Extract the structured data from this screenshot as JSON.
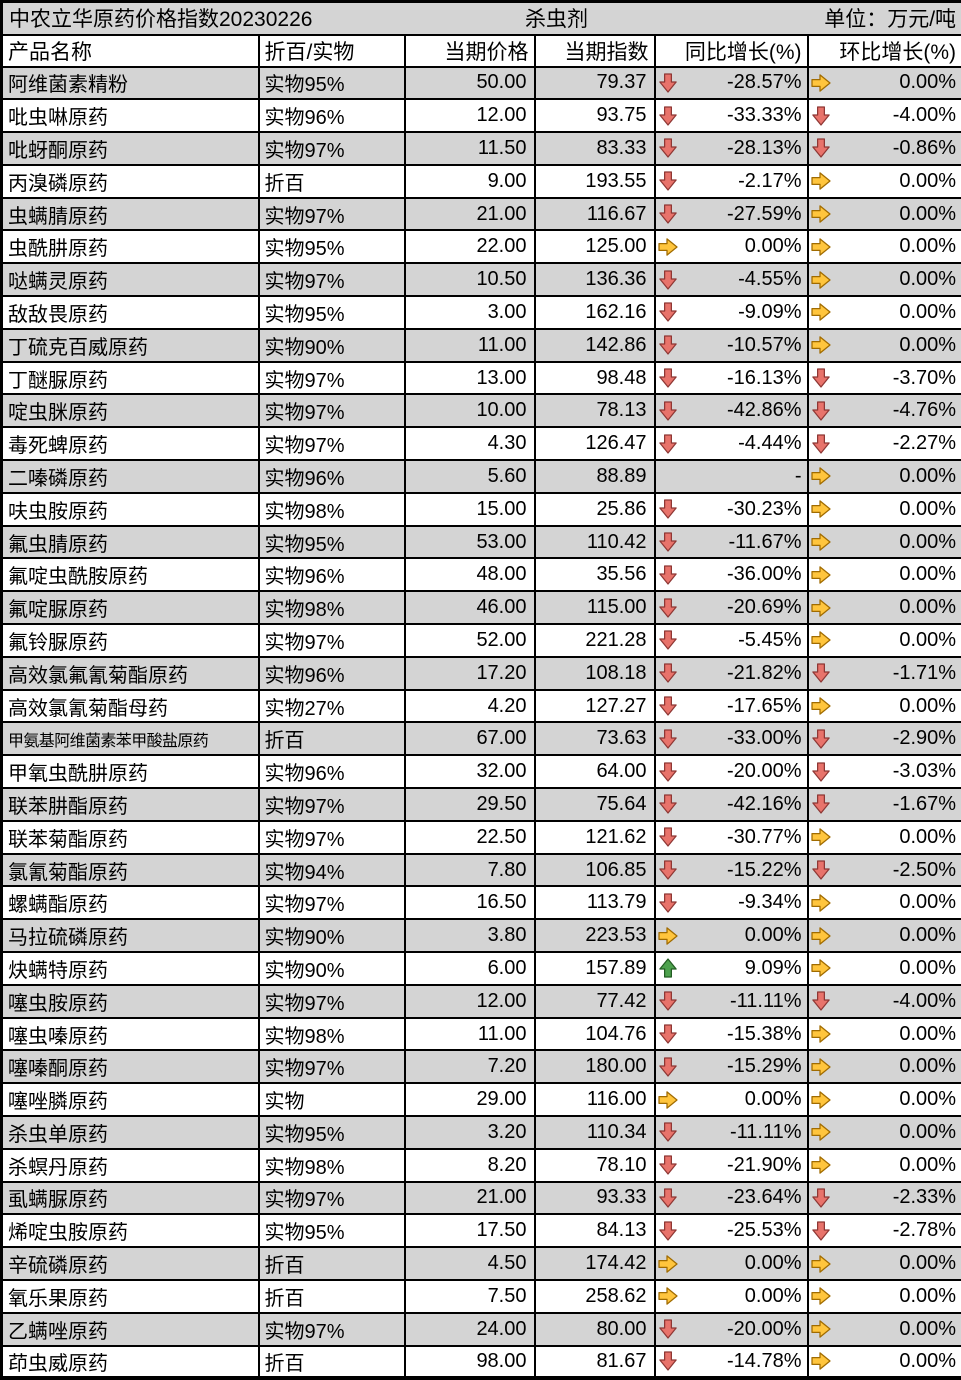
{
  "title": {
    "left": "中农立华原药价格指数20230226",
    "center": "杀虫剂",
    "right": "单位：万元/吨"
  },
  "colors": {
    "row_stripe": "#d4d4d4",
    "grid_border": "#000000",
    "arrow_down_fill": "#e8736b",
    "arrow_down_stroke": "#8e3734",
    "arrow_right_fill": "#ffc53d",
    "arrow_right_stroke": "#a06b00",
    "arrow_up_fill": "#4ea24e",
    "arrow_up_stroke": "#225c22"
  },
  "chart_data": {
    "type": "table",
    "title": "中农立华原药价格指数20230226",
    "category": "杀虫剂",
    "unit_label": "单位：万元/吨",
    "columns": [
      "产品名称",
      "折百/实物",
      "当期价格",
      "当期指数",
      "同比增长(%)",
      "环比增长(%)"
    ],
    "rows": [
      {
        "name": "阿维菌素精粉",
        "spec": "实物95%",
        "price": "50.00",
        "index": "79.37",
        "yoy_dir": "down",
        "yoy": "-28.57%",
        "mom_dir": "right",
        "mom": "0.00%"
      },
      {
        "name": "吡虫啉原药",
        "spec": "实物96%",
        "price": "12.00",
        "index": "93.75",
        "yoy_dir": "down",
        "yoy": "-33.33%",
        "mom_dir": "down",
        "mom": "-4.00%"
      },
      {
        "name": "吡蚜酮原药",
        "spec": "实物97%",
        "price": "11.50",
        "index": "83.33",
        "yoy_dir": "down",
        "yoy": "-28.13%",
        "mom_dir": "down",
        "mom": "-0.86%"
      },
      {
        "name": "丙溴磷原药",
        "spec": "折百",
        "price": "9.00",
        "index": "193.55",
        "yoy_dir": "down",
        "yoy": "-2.17%",
        "mom_dir": "right",
        "mom": "0.00%"
      },
      {
        "name": "虫螨腈原药",
        "spec": "实物97%",
        "price": "21.00",
        "index": "116.67",
        "yoy_dir": "down",
        "yoy": "-27.59%",
        "mom_dir": "right",
        "mom": "0.00%"
      },
      {
        "name": "虫酰肼原药",
        "spec": "实物95%",
        "price": "22.00",
        "index": "125.00",
        "yoy_dir": "right",
        "yoy": "0.00%",
        "mom_dir": "right",
        "mom": "0.00%"
      },
      {
        "name": "哒螨灵原药",
        "spec": "实物97%",
        "price": "10.50",
        "index": "136.36",
        "yoy_dir": "down",
        "yoy": "-4.55%",
        "mom_dir": "right",
        "mom": "0.00%"
      },
      {
        "name": "敌敌畏原药",
        "spec": "实物95%",
        "price": "3.00",
        "index": "162.16",
        "yoy_dir": "down",
        "yoy": "-9.09%",
        "mom_dir": "right",
        "mom": "0.00%"
      },
      {
        "name": "丁硫克百威原药",
        "spec": "实物90%",
        "price": "11.00",
        "index": "142.86",
        "yoy_dir": "down",
        "yoy": "-10.57%",
        "mom_dir": "right",
        "mom": "0.00%"
      },
      {
        "name": "丁醚脲原药",
        "spec": "实物97%",
        "price": "13.00",
        "index": "98.48",
        "yoy_dir": "down",
        "yoy": "-16.13%",
        "mom_dir": "down",
        "mom": "-3.70%"
      },
      {
        "name": "啶虫脒原药",
        "spec": "实物97%",
        "price": "10.00",
        "index": "78.13",
        "yoy_dir": "down",
        "yoy": "-42.86%",
        "mom_dir": "down",
        "mom": "-4.76%"
      },
      {
        "name": "毒死蜱原药",
        "spec": "实物97%",
        "price": "4.30",
        "index": "126.47",
        "yoy_dir": "down",
        "yoy": "-4.44%",
        "mom_dir": "down",
        "mom": "-2.27%"
      },
      {
        "name": "二嗪磷原药",
        "spec": "实物96%",
        "price": "5.60",
        "index": "88.89",
        "yoy_dir": "none",
        "yoy": "-",
        "mom_dir": "right",
        "mom": "0.00%"
      },
      {
        "name": "呋虫胺原药",
        "spec": "实物98%",
        "price": "15.00",
        "index": "25.86",
        "yoy_dir": "down",
        "yoy": "-30.23%",
        "mom_dir": "right",
        "mom": "0.00%"
      },
      {
        "name": "氟虫腈原药",
        "spec": "实物95%",
        "price": "53.00",
        "index": "110.42",
        "yoy_dir": "down",
        "yoy": "-11.67%",
        "mom_dir": "right",
        "mom": "0.00%"
      },
      {
        "name": "氟啶虫酰胺原药",
        "spec": "实物96%",
        "price": "48.00",
        "index": "35.56",
        "yoy_dir": "down",
        "yoy": "-36.00%",
        "mom_dir": "right",
        "mom": "0.00%"
      },
      {
        "name": "氟啶脲原药",
        "spec": "实物98%",
        "price": "46.00",
        "index": "115.00",
        "yoy_dir": "down",
        "yoy": "-20.69%",
        "mom_dir": "right",
        "mom": "0.00%"
      },
      {
        "name": "氟铃脲原药",
        "spec": "实物97%",
        "price": "52.00",
        "index": "221.28",
        "yoy_dir": "down",
        "yoy": "-5.45%",
        "mom_dir": "right",
        "mom": "0.00%"
      },
      {
        "name": "高效氯氟氰菊酯原药",
        "spec": "实物96%",
        "price": "17.20",
        "index": "108.18",
        "yoy_dir": "down",
        "yoy": "-21.82%",
        "mom_dir": "down",
        "mom": "-1.71%"
      },
      {
        "name": "高效氯氰菊酯母药",
        "spec": "实物27%",
        "price": "4.20",
        "index": "127.27",
        "yoy_dir": "down",
        "yoy": "-17.65%",
        "mom_dir": "right",
        "mom": "0.00%"
      },
      {
        "name": "甲氨基阿维菌素苯甲酸盐原药",
        "spec": "折百",
        "price": "67.00",
        "index": "73.63",
        "yoy_dir": "down",
        "yoy": "-33.00%",
        "mom_dir": "down",
        "mom": "-2.90%"
      },
      {
        "name": "甲氧虫酰肼原药",
        "spec": "实物96%",
        "price": "32.00",
        "index": "64.00",
        "yoy_dir": "down",
        "yoy": "-20.00%",
        "mom_dir": "down",
        "mom": "-3.03%"
      },
      {
        "name": "联苯肼酯原药",
        "spec": "实物97%",
        "price": "29.50",
        "index": "75.64",
        "yoy_dir": "down",
        "yoy": "-42.16%",
        "mom_dir": "down",
        "mom": "-1.67%"
      },
      {
        "name": "联苯菊酯原药",
        "spec": "实物97%",
        "price": "22.50",
        "index": "121.62",
        "yoy_dir": "down",
        "yoy": "-30.77%",
        "mom_dir": "right",
        "mom": "0.00%"
      },
      {
        "name": "氯氰菊酯原药",
        "spec": "实物94%",
        "price": "7.80",
        "index": "106.85",
        "yoy_dir": "down",
        "yoy": "-15.22%",
        "mom_dir": "down",
        "mom": "-2.50%"
      },
      {
        "name": "螺螨酯原药",
        "spec": "实物97%",
        "price": "16.50",
        "index": "113.79",
        "yoy_dir": "down",
        "yoy": "-9.34%",
        "mom_dir": "right",
        "mom": "0.00%"
      },
      {
        "name": "马拉硫磷原药",
        "spec": "实物90%",
        "price": "3.80",
        "index": "223.53",
        "yoy_dir": "right",
        "yoy": "0.00%",
        "mom_dir": "right",
        "mom": "0.00%"
      },
      {
        "name": "炔螨特原药",
        "spec": "实物90%",
        "price": "6.00",
        "index": "157.89",
        "yoy_dir": "up",
        "yoy": "9.09%",
        "mom_dir": "right",
        "mom": "0.00%"
      },
      {
        "name": "噻虫胺原药",
        "spec": "实物97%",
        "price": "12.00",
        "index": "77.42",
        "yoy_dir": "down",
        "yoy": "-11.11%",
        "mom_dir": "down",
        "mom": "-4.00%"
      },
      {
        "name": "噻虫嗪原药",
        "spec": "实物98%",
        "price": "11.00",
        "index": "104.76",
        "yoy_dir": "down",
        "yoy": "-15.38%",
        "mom_dir": "right",
        "mom": "0.00%"
      },
      {
        "name": "噻嗪酮原药",
        "spec": "实物97%",
        "price": "7.20",
        "index": "180.00",
        "yoy_dir": "down",
        "yoy": "-15.29%",
        "mom_dir": "right",
        "mom": "0.00%"
      },
      {
        "name": "噻唑膦原药",
        "spec": "实物",
        "price": "29.00",
        "index": "116.00",
        "yoy_dir": "right",
        "yoy": "0.00%",
        "mom_dir": "right",
        "mom": "0.00%"
      },
      {
        "name": "杀虫单原药",
        "spec": "实物95%",
        "price": "3.20",
        "index": "110.34",
        "yoy_dir": "down",
        "yoy": "-11.11%",
        "mom_dir": "right",
        "mom": "0.00%"
      },
      {
        "name": "杀螟丹原药",
        "spec": "实物98%",
        "price": "8.20",
        "index": "78.10",
        "yoy_dir": "down",
        "yoy": "-21.90%",
        "mom_dir": "right",
        "mom": "0.00%"
      },
      {
        "name": "虱螨脲原药",
        "spec": "实物97%",
        "price": "21.00",
        "index": "93.33",
        "yoy_dir": "down",
        "yoy": "-23.64%",
        "mom_dir": "down",
        "mom": "-2.33%"
      },
      {
        "name": "烯啶虫胺原药",
        "spec": "实物95%",
        "price": "17.50",
        "index": "84.13",
        "yoy_dir": "down",
        "yoy": "-25.53%",
        "mom_dir": "down",
        "mom": "-2.78%"
      },
      {
        "name": "辛硫磷原药",
        "spec": "折百",
        "price": "4.50",
        "index": "174.42",
        "yoy_dir": "right",
        "yoy": "0.00%",
        "mom_dir": "right",
        "mom": "0.00%"
      },
      {
        "name": "氧乐果原药",
        "spec": "折百",
        "price": "7.50",
        "index": "258.62",
        "yoy_dir": "right",
        "yoy": "0.00%",
        "mom_dir": "right",
        "mom": "0.00%"
      },
      {
        "name": "乙螨唑原药",
        "spec": "实物97%",
        "price": "24.00",
        "index": "80.00",
        "yoy_dir": "down",
        "yoy": "-20.00%",
        "mom_dir": "right",
        "mom": "0.00%"
      },
      {
        "name": "茚虫威原药",
        "spec": "折百",
        "price": "98.00",
        "index": "81.67",
        "yoy_dir": "down",
        "yoy": "-14.78%",
        "mom_dir": "right",
        "mom": "0.00%"
      }
    ]
  }
}
